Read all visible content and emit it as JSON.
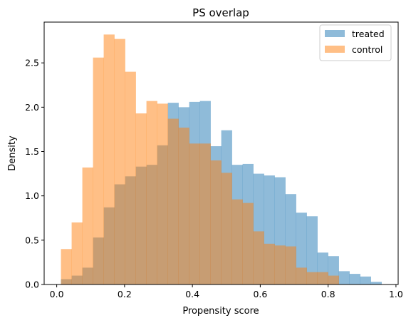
{
  "chart_data": {
    "type": "bar",
    "title": "PS overlap",
    "xlabel": "Propensity score",
    "ylabel": "Density",
    "xlim": [
      -0.037,
      1.0065
    ],
    "ylim": [
      0.0,
      2.96
    ],
    "xticks": [
      0.0,
      0.2,
      0.4,
      0.6,
      0.8,
      1.0
    ],
    "xtick_labels": [
      "0.0",
      "0.2",
      "0.4",
      "0.6",
      "0.8",
      "1.0"
    ],
    "yticks": [
      0.0,
      0.5,
      1.0,
      1.5,
      2.0,
      2.5
    ],
    "ytick_labels": [
      "0.0",
      "0.5",
      "1.0",
      "1.5",
      "2.0",
      "2.5"
    ],
    "legend_position": "top-right",
    "grid": false,
    "series": [
      {
        "name": "treated",
        "color": "#1f77b4",
        "alpha": 0.5,
        "bins": [
          0.0125,
          0.044,
          0.0755,
          0.107,
          0.1385,
          0.17,
          0.2015,
          0.233,
          0.2645,
          0.296,
          0.3275,
          0.359,
          0.3905,
          0.422,
          0.4535,
          0.485,
          0.5165,
          0.548,
          0.5795,
          0.611,
          0.6425,
          0.674,
          0.7055,
          0.737,
          0.7685,
          0.8,
          0.8315,
          0.863,
          0.8945,
          0.926,
          0.9575
        ],
        "values": [
          0.06,
          0.1,
          0.19,
          0.53,
          0.87,
          1.13,
          1.22,
          1.33,
          1.35,
          1.57,
          2.05,
          2.0,
          2.06,
          2.07,
          1.56,
          1.74,
          1.35,
          1.36,
          1.25,
          1.23,
          1.21,
          1.02,
          0.81,
          0.77,
          0.36,
          0.32,
          0.15,
          0.12,
          0.09,
          0.03
        ]
      },
      {
        "name": "control",
        "color": "#ff7f0e",
        "alpha": 0.5,
        "bins": [
          0.0125,
          0.044,
          0.0755,
          0.107,
          0.1385,
          0.17,
          0.2015,
          0.233,
          0.2645,
          0.296,
          0.3275,
          0.359,
          0.3905,
          0.422,
          0.4535,
          0.485,
          0.5165,
          0.548,
          0.5795,
          0.611,
          0.6425,
          0.674,
          0.7055,
          0.737,
          0.7685,
          0.8,
          0.8315,
          0.863,
          0.8945,
          0.926,
          0.9575
        ],
        "values": [
          0.4,
          0.7,
          1.32,
          2.56,
          2.82,
          2.77,
          2.4,
          1.93,
          2.07,
          2.04,
          1.87,
          1.77,
          1.59,
          1.59,
          1.4,
          1.26,
          0.96,
          0.92,
          0.6,
          0.46,
          0.44,
          0.43,
          0.19,
          0.14,
          0.14,
          0.1,
          0.0,
          0.0,
          0.0,
          0.0
        ]
      }
    ]
  }
}
